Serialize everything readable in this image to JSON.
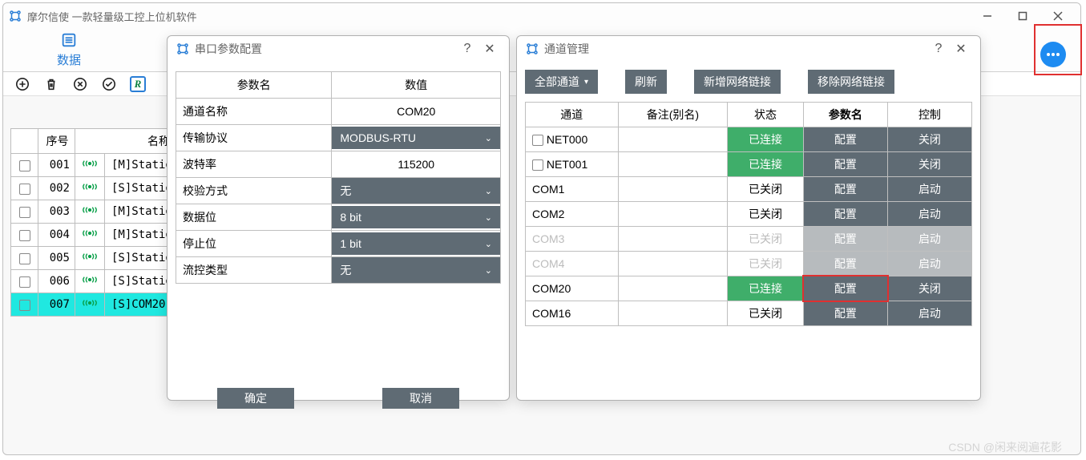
{
  "app": {
    "title": "摩尔信使  一款轻量级工控上位机软件",
    "tab_active": "数据",
    "list_header_seq": "序号",
    "list_header_name": "名称"
  },
  "data_rows": [
    {
      "seq": "001",
      "name": "[M]Statio"
    },
    {
      "seq": "002",
      "name": "[S]Statio"
    },
    {
      "seq": "003",
      "name": "[M]Statio"
    },
    {
      "seq": "004",
      "name": "[M]Statio"
    },
    {
      "seq": "005",
      "name": "[S]Statio"
    },
    {
      "seq": "006",
      "name": "[S]Statio"
    },
    {
      "seq": "007",
      "name": "[S]COM20-",
      "hl": true
    }
  ],
  "serial": {
    "title": "串口参数配置",
    "col_param": "参数名",
    "col_value": "数值",
    "btn_ok": "确定",
    "btn_cancel": "取消",
    "rows": [
      {
        "k": "通道名称",
        "v": "COM20",
        "type": "static"
      },
      {
        "k": "传输协议",
        "v": "MODBUS-RTU",
        "type": "select"
      },
      {
        "k": "波特率",
        "v": "115200",
        "type": "static"
      },
      {
        "k": "校验方式",
        "v": "无",
        "type": "select"
      },
      {
        "k": "数据位",
        "v": "8 bit",
        "type": "select"
      },
      {
        "k": "停止位",
        "v": "1 bit",
        "type": "select"
      },
      {
        "k": "流控类型",
        "v": "无",
        "type": "select"
      }
    ]
  },
  "chan": {
    "title": "通道管理",
    "btn_all": "全部通道",
    "btn_refresh": "刷新",
    "btn_add": "新增网络链接",
    "btn_remove": "移除网络链接",
    "col_channel": "通道",
    "col_remark": "备注(别名)",
    "col_status": "状态",
    "col_param": "参数名",
    "col_control": "控制",
    "rows": [
      {
        "name": "NET000",
        "chk": true,
        "remark": "",
        "status": "已连接",
        "status_style": "conn",
        "cfg": "配置",
        "ctrl": "关闭",
        "disabled": false
      },
      {
        "name": "NET001",
        "chk": true,
        "remark": "",
        "status": "已连接",
        "status_style": "conn",
        "cfg": "配置",
        "ctrl": "关闭",
        "disabled": false
      },
      {
        "name": "COM1",
        "chk": false,
        "remark": "",
        "status": "已关闭",
        "status_style": "",
        "cfg": "配置",
        "ctrl": "启动",
        "disabled": false
      },
      {
        "name": "COM2",
        "chk": false,
        "remark": "",
        "status": "已关闭",
        "status_style": "",
        "cfg": "配置",
        "ctrl": "启动",
        "disabled": false
      },
      {
        "name": "COM3",
        "chk": false,
        "remark": "",
        "status": "已关闭",
        "status_style": "",
        "cfg": "配置",
        "ctrl": "启动",
        "disabled": true
      },
      {
        "name": "COM4",
        "chk": false,
        "remark": "",
        "status": "已关闭",
        "status_style": "",
        "cfg": "配置",
        "ctrl": "启动",
        "disabled": true
      },
      {
        "name": "COM20",
        "chk": false,
        "remark": "",
        "status": "已连接",
        "status_style": "conn",
        "cfg": "配置",
        "ctrl": "关闭",
        "disabled": false,
        "highlight": true
      },
      {
        "name": "COM16",
        "chk": false,
        "remark": "",
        "status": "已关闭",
        "status_style": "",
        "cfg": "配置",
        "ctrl": "启动",
        "disabled": false
      }
    ]
  },
  "watermark": "CSDN @闲来阅遍花影",
  "colors": {
    "accent": "#2a7ed6",
    "btn_dark": "#5f6b74",
    "btn_disabled": "#b7bbbe",
    "status_green": "#3fae6a",
    "highlight_row": "#20e8e0",
    "red_box": "#e03030",
    "signal_green": "#0aa04a"
  }
}
